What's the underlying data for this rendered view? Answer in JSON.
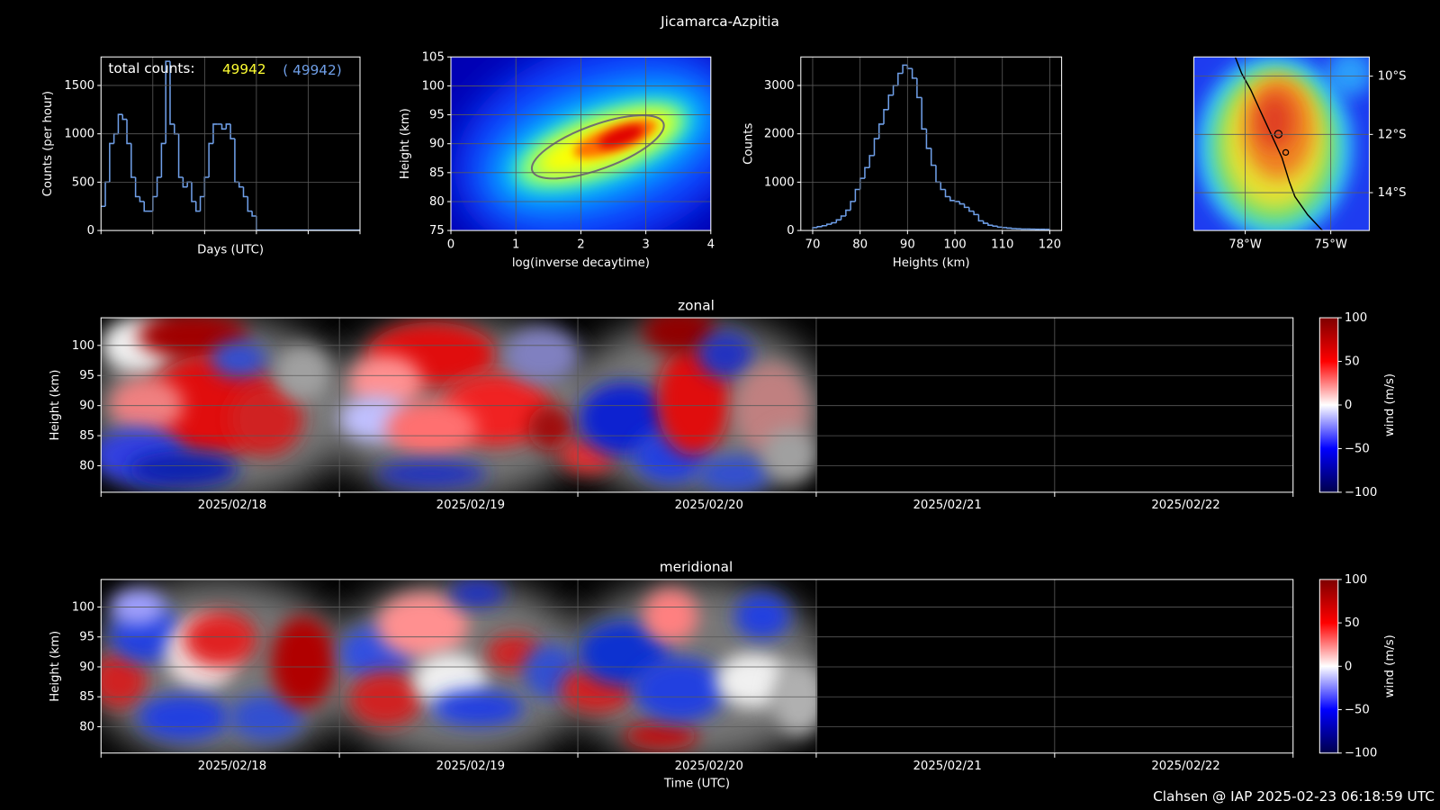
{
  "title": "Jicamarca-Azpitia",
  "footer": "Clahsen @ IAP 2025-02-23 06:18:59 UTC",
  "chart_data": [
    {
      "type": "line",
      "xlabel": "Days (UTC)",
      "ylabel": "Counts (per hour)",
      "color": "#6f9fe8",
      "annotation": {
        "text": "total counts:",
        "count": 49942,
        "count_label": "( 49942)"
      },
      "x": [
        0,
        2,
        4,
        6,
        8,
        10,
        12,
        14,
        16,
        18,
        20,
        22,
        24,
        26,
        28,
        30,
        32,
        34,
        36,
        38,
        40,
        42,
        44,
        46,
        48,
        50,
        52,
        54,
        56,
        58,
        60,
        62,
        64,
        66,
        68,
        70,
        72
      ],
      "values": [
        250,
        500,
        900,
        1000,
        1200,
        1150,
        900,
        550,
        350,
        300,
        200,
        200,
        350,
        550,
        900,
        1750,
        1100,
        1000,
        550,
        450,
        500,
        300,
        200,
        350,
        550,
        900,
        1100,
        1100,
        1050,
        1100,
        950,
        500,
        450,
        350,
        200,
        150,
        5
      ],
      "xlim": [
        0,
        120
      ],
      "xticks": [
        0,
        24,
        48,
        72,
        96,
        120
      ],
      "xtick_labels": false,
      "ylim": [
        0,
        1795
      ],
      "yticks": [
        0,
        500,
        1000,
        1500
      ],
      "grid": true
    },
    {
      "type": "density",
      "xlabel": "log(inverse decaytime)",
      "ylabel": "Height (km)",
      "xlim": [
        0,
        4
      ],
      "xticks": [
        0,
        1,
        2,
        3,
        4
      ],
      "ylim": [
        75,
        105
      ],
      "yticks": [
        75,
        80,
        85,
        90,
        95,
        100,
        105
      ],
      "grid": true
    },
    {
      "type": "histogram",
      "xlabel": "Heights (km)",
      "ylabel": "Counts",
      "color": "#6f9fe8",
      "bins": [
        70,
        71,
        72,
        73,
        74,
        75,
        76,
        77,
        78,
        79,
        80,
        81,
        82,
        83,
        84,
        85,
        86,
        87,
        88,
        89,
        90,
        91,
        92,
        93,
        94,
        95,
        96,
        97,
        98,
        99,
        100,
        101,
        102,
        103,
        104,
        105,
        106,
        107,
        108,
        109,
        110,
        111,
        112,
        113,
        114,
        115,
        116,
        117,
        118,
        119,
        120
      ],
      "values": [
        60,
        80,
        100,
        130,
        160,
        220,
        300,
        420,
        600,
        850,
        1080,
        1300,
        1550,
        1900,
        2200,
        2500,
        2800,
        3000,
        3250,
        3420,
        3350,
        3150,
        2750,
        2100,
        1700,
        1350,
        1000,
        850,
        700,
        620,
        600,
        550,
        480,
        400,
        330,
        200,
        150,
        110,
        90,
        70,
        60,
        50,
        40,
        35,
        30,
        30,
        28,
        25,
        25,
        22
      ],
      "xlim": [
        67.5,
        122.5
      ],
      "xticks": [
        70,
        80,
        90,
        100,
        110,
        120
      ],
      "ylim": [
        0,
        3590
      ],
      "yticks": [
        0,
        1000,
        2000,
        3000
      ],
      "grid": true
    },
    {
      "type": "map",
      "ytick_side": "right",
      "xlim": [
        -79.8,
        -73.65
      ],
      "xticks": [
        {
          "value": -78,
          "label": "78°W"
        },
        {
          "value": -75,
          "label": "75°W"
        }
      ],
      "ylim": [
        -15.3,
        -9.34
      ],
      "yticks": [
        {
          "value": -10,
          "label": "10°S"
        },
        {
          "value": -12,
          "label": "12°S"
        },
        {
          "value": -14,
          "label": "14°S"
        }
      ],
      "grid": true
    },
    {
      "type": "heatmap",
      "title": "zonal",
      "ylabel": "Height (km)",
      "colorbar_label": "wind (m/s)",
      "categories": [
        "2025/02/18",
        "2025/02/19",
        "2025/02/20",
        "2025/02/21",
        "2025/02/22"
      ],
      "ylim": [
        75.6,
        104.6
      ],
      "yticks": [
        80,
        85,
        90,
        95,
        100
      ],
      "grid": true,
      "zlim": [
        -100,
        100
      ],
      "zticks": [
        {
          "value": -100,
          "label": "−100"
        },
        {
          "value": -50,
          "label": "−50"
        },
        0,
        50,
        100
      ]
    },
    {
      "type": "heatmap",
      "title": "meridional",
      "xlabel": "Time (UTC)",
      "ylabel": "Height (km)",
      "colorbar_label": "wind (m/s)",
      "categories": [
        "2025/02/18",
        "2025/02/19",
        "2025/02/20",
        "2025/02/21",
        "2025/02/22"
      ],
      "ylim": [
        75.6,
        104.6
      ],
      "yticks": [
        80,
        85,
        90,
        95,
        100
      ],
      "grid": true,
      "zlim": [
        -100,
        100
      ],
      "zticks": [
        {
          "value": -100,
          "label": "−100"
        },
        {
          "value": -50,
          "label": "−50"
        },
        0,
        50,
        100
      ]
    }
  ]
}
